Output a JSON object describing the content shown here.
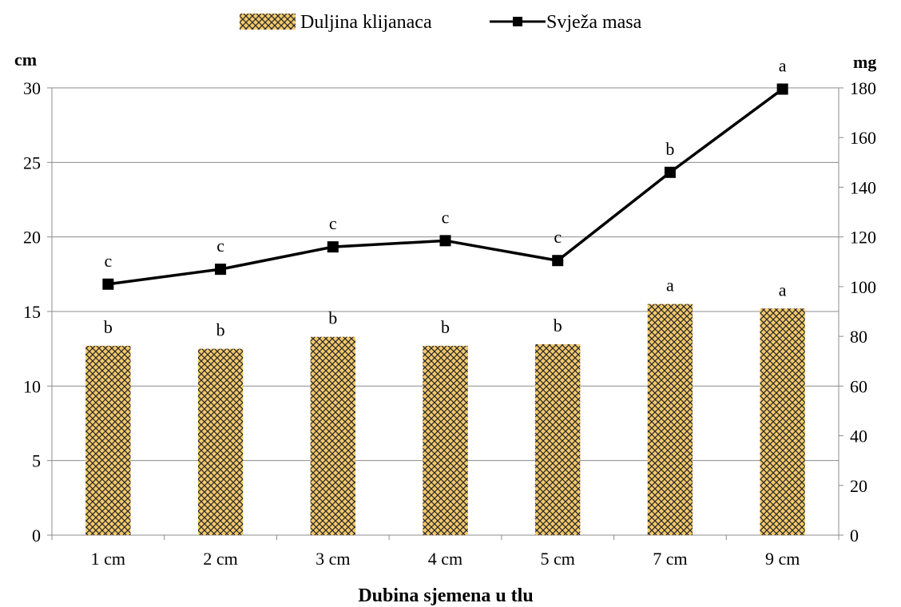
{
  "chart_data": {
    "type": "bar",
    "title": "",
    "categories": [
      "1 cm",
      "2 cm",
      "3 cm",
      "4 cm",
      "5 cm",
      "7 cm",
      "9 cm"
    ],
    "xlabel": "Dubina sjemena u tlu",
    "ylabel_left": "cm",
    "ylabel_right": "mg",
    "ylim_left": [
      0,
      30
    ],
    "yticks_left": [
      0,
      5,
      10,
      15,
      20,
      25,
      30
    ],
    "ylim_right": [
      0,
      180
    ],
    "yticks_right": [
      0,
      20,
      40,
      60,
      80,
      100,
      120,
      140,
      160,
      180
    ],
    "grid": true,
    "legend_position": "top",
    "series": [
      {
        "name": "Duljina klijanaca",
        "type": "bar",
        "axis": "left",
        "values": [
          12.7,
          12.5,
          13.3,
          12.7,
          12.8,
          15.5,
          15.2
        ],
        "labels": [
          "b",
          "b",
          "b",
          "b",
          "b",
          "a",
          "a"
        ],
        "color": "#F5C96B"
      },
      {
        "name": "Svježa masa",
        "type": "line",
        "axis": "right",
        "values": [
          101,
          107,
          116,
          118.5,
          110.5,
          146,
          179.5
        ],
        "labels": [
          "c",
          "c",
          "c",
          "c",
          "c",
          "b",
          "a"
        ],
        "color": "#000000"
      }
    ]
  }
}
